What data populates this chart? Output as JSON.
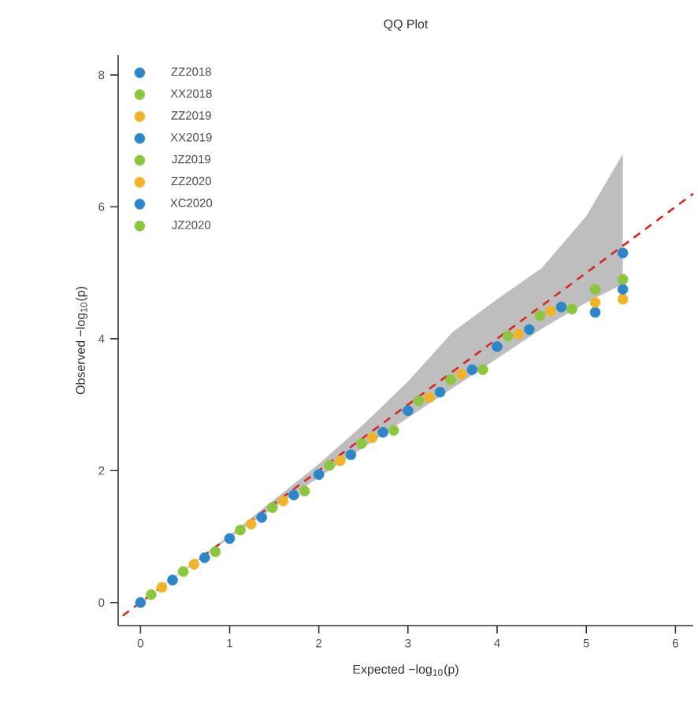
{
  "chart_data": {
    "type": "scatter",
    "title": "QQ Plot",
    "xlabel": "Expected −log$_{10}$(p)",
    "ylabel": "Observed −log$_{10}$(p)",
    "xlim": [
      -0.25,
      6.2
    ],
    "ylim": [
      -0.35,
      8.3
    ],
    "xticks": [
      0,
      1,
      2,
      3,
      4,
      5,
      6
    ],
    "yticks": [
      0,
      2,
      4,
      6,
      8
    ],
    "legend": "top left",
    "grid": false,
    "series": [
      {
        "type": "line",
        "color": "#d62728",
        "line_style": "dashed",
        "marker": "none",
        "x": [
          -0.2,
          0,
          1,
          2,
          2.5,
          3,
          3.5,
          4,
          4.5,
          5,
          5.41,
          6.2
        ],
        "values": [
          -0.2,
          0,
          1,
          2,
          2.5,
          3,
          3.5,
          4,
          4.5,
          5,
          5.41,
          6.2
        ],
        "lower": [
          null,
          0,
          0.98,
          1.9,
          2.35,
          2.8,
          3.25,
          3.7,
          4.15,
          4.55,
          4.83,
          null
        ],
        "upper": [
          null,
          0,
          1.02,
          2.1,
          2.7,
          3.35,
          4.1,
          4.6,
          5.07,
          5.86,
          6.8,
          null
        ]
      },
      {
        "name": "ZZ2018",
        "color": "#2e86c8",
        "x": [
          0,
          1,
          2,
          3,
          4,
          5.1,
          5.41
        ],
        "values": [
          0,
          0.97,
          1.94,
          2.91,
          3.88,
          4.4,
          5.3
        ]
      },
      {
        "name": "XX2018",
        "color": "#8cc63e",
        "x": [
          0.12,
          1.12,
          2.12,
          3.12,
          4.12
        ],
        "values": [
          0.12,
          1.1,
          2.08,
          3.06,
          4.04
        ]
      },
      {
        "name": "ZZ2019",
        "color": "#f0b429",
        "x": [
          0.24,
          1.24,
          2.24,
          3.24,
          4.24,
          5.1,
          5.41
        ],
        "values": [
          0.23,
          1.19,
          2.15,
          3.11,
          4.07,
          4.55,
          4.6
        ]
      },
      {
        "name": "XX2019",
        "color": "#2e86c8",
        "x": [
          0.36,
          1.36,
          2.36,
          3.36,
          4.36,
          5.41
        ],
        "values": [
          0.34,
          1.29,
          2.24,
          3.19,
          4.14,
          4.75
        ]
      },
      {
        "name": "JZ2019",
        "color": "#8cc63e",
        "x": [
          0.48,
          1.48,
          2.48,
          3.48,
          4.48
        ],
        "values": [
          0.47,
          1.44,
          2.41,
          3.38,
          4.35
        ]
      },
      {
        "name": "ZZ2020",
        "color": "#f0b429",
        "x": [
          0.6,
          1.6,
          2.6,
          3.6,
          4.6
        ],
        "values": [
          0.58,
          1.54,
          2.5,
          3.46,
          4.42
        ]
      },
      {
        "name": "XC2020",
        "color": "#2e86c8",
        "x": [
          0.72,
          1.72,
          2.72,
          3.72,
          4.72
        ],
        "values": [
          0.68,
          1.63,
          2.58,
          3.53,
          4.48
        ]
      },
      {
        "name": "JZ2020",
        "color": "#8cc63e",
        "x": [
          0.84,
          1.84,
          2.84,
          3.84,
          4.84,
          5.1,
          5.41
        ],
        "values": [
          0.77,
          1.69,
          2.61,
          3.53,
          4.45,
          4.75,
          4.9
        ]
      }
    ]
  }
}
